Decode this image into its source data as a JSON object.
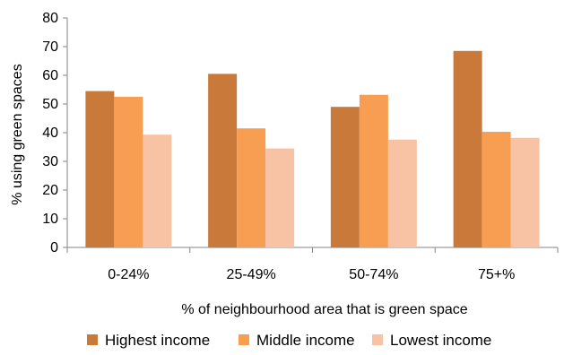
{
  "chart_data": {
    "type": "bar",
    "categories": [
      "0-24%",
      "25-49%",
      "50-74%",
      "75+%"
    ],
    "series": [
      {
        "name": "Highest income",
        "color": "#C97A3A",
        "values": [
          54.5,
          60.5,
          49,
          68.5
        ]
      },
      {
        "name": "Middle income",
        "color": "#F79E52",
        "values": [
          52.5,
          41.5,
          53.2,
          40.3
        ]
      },
      {
        "name": "Lowest income",
        "color": "#F8C2A4",
        "values": [
          39.3,
          34.5,
          37.6,
          38.2
        ]
      }
    ],
    "title": "",
    "xlabel": "% of neighbourhood area that is green space",
    "ylabel": "% using green spaces",
    "ylim": [
      0,
      80
    ],
    "yticks": [
      "0",
      "10",
      "20",
      "30",
      "40",
      "50",
      "60",
      "70",
      "80"
    ],
    "grid": false,
    "legend_position": "bottom"
  }
}
